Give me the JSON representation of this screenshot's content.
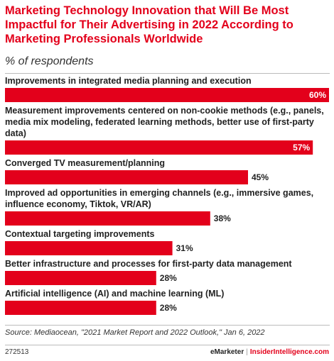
{
  "header": {
    "title": "Marketing Technology Innovation that Will Be Most Impactful for Their Advertising in 2022 According to Marketing Professionals Worldwide",
    "subtitle": "% of respondents"
  },
  "chart_data": {
    "type": "bar",
    "orientation": "horizontal",
    "categories": [
      [
        "Improvements in integrated media planning and execution"
      ],
      [
        "Measurement improvements centered on non-cookie methods (e.g., panels,",
        "media mix modeling, federated learning methods, better use of first-party",
        "data)"
      ],
      [
        "Converged TV measurement/planning"
      ],
      [
        "Improved ad opportunities in emerging channels (e.g., immersive games,",
        "influence economy, Tiktok, VR/AR)"
      ],
      [
        "Contextual targeting improvements"
      ],
      [
        "Better infrastructure and processes for first-party data management"
      ],
      [
        "Artificial intelligence (AI) and machine learning (ML)"
      ]
    ],
    "values": [
      60,
      57,
      45,
      38,
      31,
      28,
      28
    ],
    "value_labels": [
      "60%",
      "57%",
      "45%",
      "38%",
      "31%",
      "28%",
      "28%"
    ],
    "xlim": [
      0,
      60
    ],
    "bar_color": "#e3001b",
    "grid": false,
    "legend": "none"
  },
  "footer": {
    "source": "Source: Mediaocean, \"2021 Market Report and 2022 Outlook,\" Jan 6, 2022",
    "chart_id": "272513",
    "brand_emarketer": "eMarketer",
    "brand_sep": "|",
    "brand_insider": "InsiderIntelligence.com"
  }
}
